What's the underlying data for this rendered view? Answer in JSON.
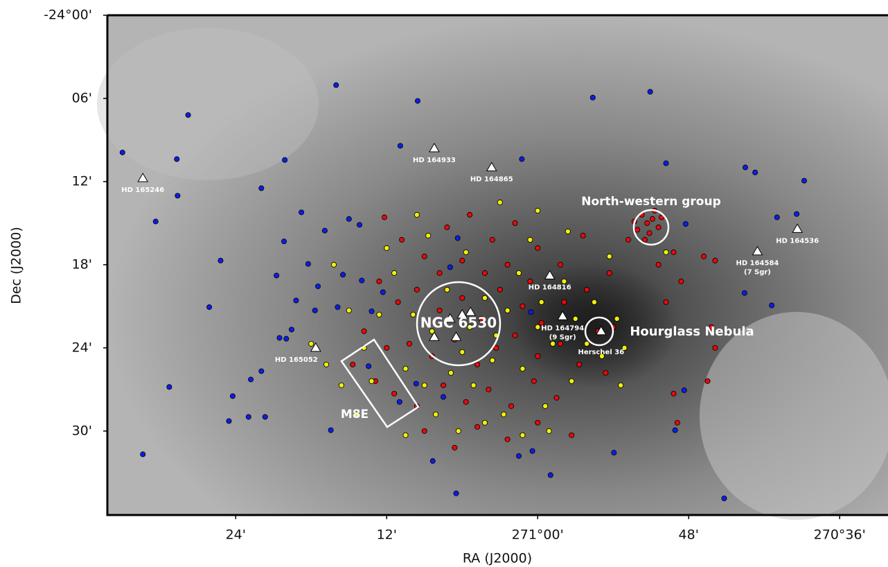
{
  "chart_data": {
    "type": "scatter",
    "xlabel": "RA (J2000)",
    "ylabel": "Dec (J2000)",
    "xlim": [
      271.57,
      270.536
    ],
    "ylim": [
      -24.0,
      -24.601
    ],
    "xticks": [
      {
        "value": 271.4,
        "label": "24'"
      },
      {
        "value": 271.2,
        "label": "12'"
      },
      {
        "value": 271.0,
        "label": "271°00'"
      },
      {
        "value": 270.8,
        "label": "48'"
      },
      {
        "value": 270.6,
        "label": "270°36'"
      }
    ],
    "yticks": [
      {
        "value": -24.0,
        "label": "-24°00'"
      },
      {
        "value": -24.1,
        "label": "06'"
      },
      {
        "value": -24.2,
        "label": "12'"
      },
      {
        "value": -24.3,
        "label": "18'"
      },
      {
        "value": -24.4,
        "label": "24'"
      },
      {
        "value": -24.5,
        "label": "30'"
      }
    ],
    "series": [
      {
        "color": "#0a1ee6",
        "x": [
          271.55,
          271.523,
          271.506,
          271.488,
          271.478,
          271.477,
          271.463,
          271.42,
          271.435,
          271.409,
          271.404,
          271.383,
          271.38,
          271.366,
          271.361,
          271.366,
          271.335,
          271.336,
          271.346,
          271.342,
          271.333,
          271.326,
          271.32,
          271.313,
          271.304,
          271.295,
          271.291,
          271.282,
          271.267,
          271.274,
          271.265,
          271.258,
          271.25,
          271.236,
          271.233,
          271.22,
          271.205,
          271.182,
          271.159,
          271.139,
          271.108,
          271.106,
          271.161,
          271.021,
          271.009,
          271.025,
          271.007,
          270.983,
          270.927,
          270.851,
          270.83,
          270.806,
          270.804,
          270.818,
          270.899,
          270.753,
          270.725,
          270.712,
          270.726,
          270.69,
          270.683,
          270.657,
          270.647,
          271.183,
          271.125,
          271.224,
          271.116
        ],
        "y": [
          -24.165,
          -24.528,
          -24.248,
          -24.447,
          -24.173,
          -24.217,
          -24.12,
          -24.295,
          -24.351,
          -24.488,
          -24.458,
          -24.483,
          -24.438,
          -24.428,
          -24.483,
          -24.208,
          -24.174,
          -24.272,
          -24.313,
          -24.388,
          -24.389,
          -24.378,
          -24.343,
          -24.237,
          -24.299,
          -24.355,
          -24.326,
          -24.259,
          -24.084,
          -24.499,
          -24.351,
          -24.312,
          -24.245,
          -24.252,
          -24.319,
          -24.356,
          -24.333,
          -24.157,
          -24.103,
          -24.536,
          -24.575,
          -24.268,
          -24.443,
          -24.173,
          -24.357,
          -24.53,
          -24.524,
          -24.553,
          -24.099,
          -24.092,
          -24.178,
          -24.451,
          -24.251,
          -24.499,
          -24.526,
          -24.581,
          -24.183,
          -24.189,
          -24.334,
          -24.349,
          -24.243,
          -24.239,
          -24.199,
          -24.465,
          -24.459,
          -24.422,
          -24.303
        ]
      },
      {
        "color": "#e60a0a",
        "x": [
          271.203,
          271.18,
          271.15,
          271.12,
          271.09,
          271.06,
          271.03,
          271.0,
          270.97,
          270.94,
          271.21,
          271.185,
          271.16,
          271.13,
          271.1,
          271.075,
          271.05,
          271.02,
          270.995,
          270.965,
          270.935,
          270.905,
          271.23,
          271.2,
          271.17,
          271.14,
          271.11,
          271.08,
          271.055,
          271.03,
          271.0,
          270.97,
          270.945,
          270.92,
          271.215,
          271.19,
          271.16,
          271.125,
          271.095,
          271.065,
          271.035,
          271.005,
          270.975,
          271.15,
          271.11,
          271.08,
          271.04,
          271.0,
          270.955,
          271.245,
          271.07,
          271.04,
          271.01,
          271.1,
          271.13,
          270.862,
          270.855,
          270.848,
          270.84,
          270.868,
          270.852,
          270.845,
          270.836,
          270.872,
          270.858,
          270.88,
          270.82,
          270.78,
          270.765,
          270.84,
          270.83,
          270.81,
          270.77,
          270.765,
          270.775,
          270.82,
          270.815,
          270.9,
          270.91
        ],
        "y": [
          -24.243,
          -24.27,
          -24.29,
          -24.255,
          -24.24,
          -24.27,
          -24.25,
          -24.28,
          -24.3,
          -24.265,
          -24.32,
          -24.345,
          -24.33,
          -24.355,
          -24.34,
          -24.365,
          -24.33,
          -24.35,
          -24.37,
          -24.345,
          -24.33,
          -24.31,
          -24.38,
          -24.4,
          -24.395,
          -24.41,
          -24.39,
          -24.42,
          -24.4,
          -24.385,
          -24.41,
          -24.395,
          -24.42,
          -24.38,
          -24.44,
          -24.455,
          -24.47,
          -24.445,
          -24.465,
          -24.45,
          -24.47,
          -24.44,
          -24.46,
          -24.5,
          -24.52,
          -24.495,
          -24.51,
          -24.49,
          -24.505,
          -24.42,
          -24.31,
          -24.3,
          -24.32,
          -24.295,
          -24.31,
          -24.24,
          -24.25,
          -24.245,
          -24.255,
          -24.258,
          -24.262,
          -24.235,
          -24.243,
          -24.248,
          -24.27,
          -24.27,
          -24.285,
          -24.29,
          -24.295,
          -24.3,
          -24.345,
          -24.32,
          -24.375,
          -24.4,
          -24.44,
          -24.455,
          -24.49,
          -24.375,
          -24.43
        ]
      },
      {
        "color": "#f0f00a",
        "x": [
          271.27,
          271.25,
          271.23,
          271.26,
          271.24,
          271.21,
          271.19,
          271.175,
          271.165,
          271.145,
          271.14,
          271.12,
          271.115,
          271.095,
          271.09,
          271.085,
          271.07,
          271.06,
          271.045,
          271.04,
          271.025,
          271.02,
          271.01,
          270.995,
          270.99,
          270.98,
          270.965,
          270.955,
          270.95,
          270.935,
          270.925,
          270.915,
          270.905,
          270.895,
          270.885,
          271.175,
          271.135,
          271.105,
          271.07,
          271.02,
          270.985,
          271.2,
          271.16,
          271.05,
          271.0,
          270.96,
          271.3,
          271.28,
          271.22,
          271.055,
          271.1,
          271.15,
          270.83,
          270.89,
          271.0
        ],
        "y": [
          -24.3,
          -24.355,
          -24.4,
          -24.445,
          -24.48,
          -24.36,
          -24.31,
          -24.425,
          -24.36,
          -24.265,
          -24.38,
          -24.33,
          -24.43,
          -24.285,
          -24.375,
          -24.445,
          -24.34,
          -24.415,
          -24.48,
          -24.355,
          -24.31,
          -24.425,
          -24.27,
          -24.345,
          -24.47,
          -24.395,
          -24.32,
          -24.44,
          -24.365,
          -24.395,
          -24.345,
          -24.41,
          -24.29,
          -24.365,
          -24.4,
          -24.505,
          -24.48,
          -24.5,
          -24.49,
          -24.505,
          -24.5,
          -24.28,
          -24.24,
          -24.225,
          -24.235,
          -24.26,
          -24.395,
          -24.42,
          -24.44,
          -24.385,
          -24.405,
          -24.445,
          -24.285,
          -24.445,
          -24.375
        ]
      }
    ],
    "stars": {
      "x": [
        271.523,
        271.137,
        271.061,
        270.984,
        270.967,
        270.916,
        270.656,
        270.709,
        271.294,
        271.116,
        271.1,
        271.089,
        271.137,
        271.108
      ],
      "y": [
        -24.196,
        -24.16,
        -24.183,
        -24.313,
        -24.362,
        -24.38,
        -24.257,
        -24.284,
        -24.4,
        -24.365,
        -24.36,
        -24.357,
        -24.387,
        -24.387
      ],
      "labels": [
        [
          "HD 165246"
        ],
        [
          "HD 164933"
        ],
        [
          "HD 164865"
        ],
        [
          "HD 164816"
        ],
        [
          "HD 164794",
          "(9 Sgr)"
        ],
        [
          "Herschel 36"
        ],
        [
          "HD 164536"
        ],
        [
          "HD 164584",
          "(7 Sgr)"
        ],
        [
          "HD 165052"
        ],
        null,
        null,
        null,
        null,
        null
      ]
    },
    "annotations": [
      "NGC 6530",
      "Hourglass Nebula",
      "North-western group",
      "M8E"
    ]
  }
}
